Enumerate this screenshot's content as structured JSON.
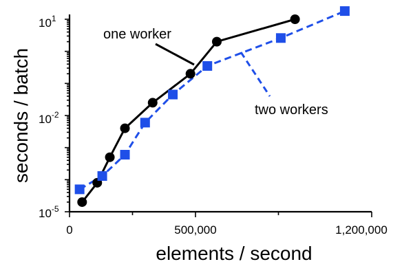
{
  "chart_data": {
    "type": "line",
    "xlabel": "elements / second",
    "ylabel": "seconds / batch",
    "xscale": "linear",
    "yscale": "log",
    "xlim": [
      0,
      1200000
    ],
    "ylim": [
      1e-05,
      10
    ],
    "x_tick_labels": [
      "0",
      "500,000",
      "1,200,000"
    ],
    "y_tick_labels": [
      {
        "base": "10",
        "exp": "1"
      },
      {
        "base": "10",
        "exp": "-2"
      },
      {
        "base": "10",
        "exp": "-5"
      }
    ],
    "grid": false,
    "annotations": [
      {
        "text": "one worker",
        "target_series": 0
      },
      {
        "text": "two workers",
        "target_series": 1
      }
    ],
    "series": [
      {
        "name": "one worker",
        "color": "#000000",
        "line_style": "solid",
        "marker": "circle",
        "points": [
          {
            "x": 50000,
            "y": 2e-05
          },
          {
            "x": 110000,
            "y": 8e-05
          },
          {
            "x": 160000,
            "y": 0.0005
          },
          {
            "x": 220000,
            "y": 0.004
          },
          {
            "x": 330000,
            "y": 0.025
          },
          {
            "x": 480000,
            "y": 0.2
          },
          {
            "x": 590000,
            "y": 2.0
          },
          {
            "x": 920000,
            "y": 10.0
          }
        ]
      },
      {
        "name": "two workers",
        "color": "#1f4fe8",
        "line_style": "dashed",
        "marker": "square",
        "points": [
          {
            "x": 40000,
            "y": 5e-05
          },
          {
            "x": 130000,
            "y": 0.00013
          },
          {
            "x": 220000,
            "y": 0.0006
          },
          {
            "x": 300000,
            "y": 0.006
          },
          {
            "x": 410000,
            "y": 0.045
          },
          {
            "x": 550000,
            "y": 0.35
          },
          {
            "x": 860000,
            "y": 2.6
          },
          {
            "x": 1130000,
            "y": 18.0
          }
        ]
      }
    ]
  }
}
